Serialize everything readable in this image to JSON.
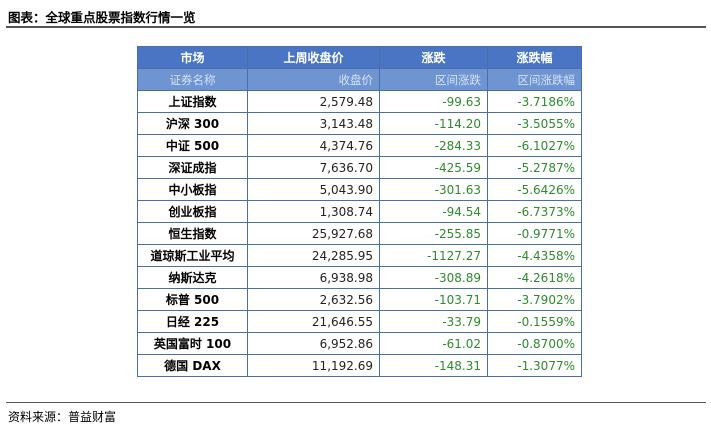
{
  "title": "图表：全球重点股票指数行情一览",
  "source": "资料来源：普益财富",
  "table": {
    "header": [
      "市场",
      "上周收盘价",
      "涨跌",
      "涨跌幅"
    ],
    "subheader": [
      "证券名称",
      "收盘价",
      "区间涨跌",
      "区间涨跌幅"
    ],
    "rows": [
      {
        "name": "上证指数",
        "close": "2,579.48",
        "change": "-99.63",
        "pct": "-3.7186%"
      },
      {
        "name": "沪深 300",
        "close": "3,143.48",
        "change": "-114.20",
        "pct": "-3.5055%"
      },
      {
        "name": "中证 500",
        "close": "4,374.76",
        "change": "-284.33",
        "pct": "-6.1027%"
      },
      {
        "name": "深证成指",
        "close": "7,636.70",
        "change": "-425.59",
        "pct": "-5.2787%"
      },
      {
        "name": "中小板指",
        "close": "5,043.90",
        "change": "-301.63",
        "pct": "-5.6426%"
      },
      {
        "name": "创业板指",
        "close": "1,308.74",
        "change": "-94.54",
        "pct": "-6.7373%"
      },
      {
        "name": "恒生指数",
        "close": "25,927.68",
        "change": "-255.85",
        "pct": "-0.9771%"
      },
      {
        "name": "道琼斯工业平均",
        "close": "24,285.95",
        "change": "-1127.27",
        "pct": "-4.4358%"
      },
      {
        "name": "纳斯达克",
        "close": "6,938.98",
        "change": "-308.89",
        "pct": "-4.2618%"
      },
      {
        "name": "标普 500",
        "close": "2,632.56",
        "change": "-103.71",
        "pct": "-3.7902%"
      },
      {
        "name": "日经 225",
        "close": "21,646.55",
        "change": "-33.79",
        "pct": "-0.1559%"
      },
      {
        "name": "英国富时 100",
        "close": "6,952.86",
        "change": "-61.02",
        "pct": "-0.8700%"
      },
      {
        "name": "德国 DAX",
        "close": "11,192.69",
        "change": "-148.31",
        "pct": "-1.3077%"
      }
    ]
  },
  "colors": {
    "header_bg": "#4a75c4",
    "subheader_bg": "#6e94d2",
    "negative_text": "#2f8a2f"
  }
}
